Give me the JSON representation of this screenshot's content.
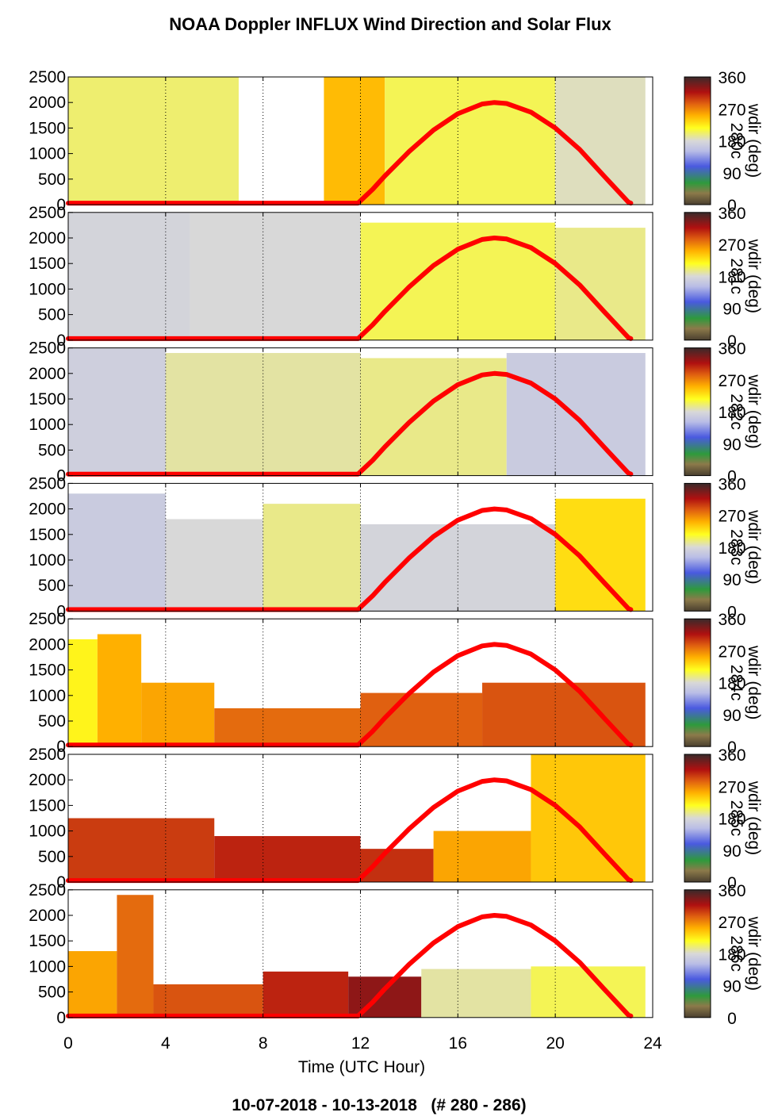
{
  "chart_data": {
    "type": "heatmap",
    "title": "NOAA Doppler INFLUX Wind Direction and Solar Flux",
    "xlabel": "Time (UTC Hour)",
    "ylabel": "",
    "xlim": [
      0,
      24
    ],
    "ylim": [
      0,
      2500
    ],
    "x_ticks": [
      "0",
      "4",
      "8",
      "12",
      "16",
      "20",
      "24"
    ],
    "y_ticks": [
      "0",
      "500",
      "1000",
      "1500",
      "2000",
      "2500"
    ],
    "grid": "dotted vertical at x = 4, 8, 12, 16, 20, 24",
    "date_range": "10-07-2018 - 10-13-2018   (# 280 - 286)",
    "colorbar": {
      "label": "wdir (deg)",
      "ticks": [
        "0",
        "90",
        "180",
        "270",
        "360"
      ],
      "range": [
        0,
        360
      ]
    },
    "solar_flux_curve": {
      "color": "#ff0000",
      "x": [
        0,
        11.9,
        12.5,
        13,
        14,
        15,
        16,
        17,
        17.5,
        18,
        19,
        20,
        21,
        22,
        23,
        23.1
      ],
      "y": [
        30,
        30,
        300,
        560,
        1040,
        1460,
        1780,
        1970,
        2000,
        1980,
        1810,
        1500,
        1080,
        560,
        50,
        30
      ]
    },
    "panels": [
      {
        "day_label": "280c",
        "segments": [
          {
            "t0": 0,
            "t1": 7.0,
            "deg": 200,
            "top": 2500
          },
          {
            "t0": 7.0,
            "t1": 10.5,
            "deg": null,
            "top": 2500
          },
          {
            "t0": 10.5,
            "t1": 13,
            "deg": 245,
            "top": 2500
          },
          {
            "t0": 13,
            "t1": 20,
            "deg": 205,
            "top": 2500
          },
          {
            "t0": 20,
            "t1": 23.7,
            "deg": 185,
            "top": 2500
          }
        ]
      },
      {
        "day_label": "281c",
        "segments": [
          {
            "t0": 0,
            "t1": 5,
            "deg": 175,
            "top": 2500
          },
          {
            "t0": 5,
            "t1": 12,
            "deg": 180,
            "top": 2500
          },
          {
            "t0": 12,
            "t1": 20,
            "deg": 205,
            "top": 2300
          },
          {
            "t0": 20,
            "t1": 23.7,
            "deg": 195,
            "top": 2200
          }
        ]
      },
      {
        "day_label": "282c",
        "segments": [
          {
            "t0": 0,
            "t1": 4,
            "deg": 170,
            "top": 2500
          },
          {
            "t0": 4,
            "t1": 12,
            "deg": 190,
            "top": 2400
          },
          {
            "t0": 12,
            "t1": 18,
            "deg": 195,
            "top": 2300
          },
          {
            "t0": 18,
            "t1": 23.7,
            "deg": 165,
            "top": 2400
          }
        ]
      },
      {
        "day_label": "283c",
        "segments": [
          {
            "t0": 0,
            "t1": 4,
            "deg": 165,
            "top": 2300
          },
          {
            "t0": 4,
            "t1": 8,
            "deg": 180,
            "top": 1800
          },
          {
            "t0": 8,
            "t1": 12,
            "deg": 195,
            "top": 2100
          },
          {
            "t0": 12,
            "t1": 20,
            "deg": 175,
            "top": 1700
          },
          {
            "t0": 20,
            "t1": 23.7,
            "deg": 230,
            "top": 2200
          }
        ]
      },
      {
        "day_label": "284c",
        "segments": [
          {
            "t0": 0,
            "t1": 1.2,
            "deg": 220,
            "top": 2100
          },
          {
            "t0": 1.2,
            "t1": 3.0,
            "deg": 250,
            "top": 2200
          },
          {
            "t0": 3.0,
            "t1": 6.0,
            "deg": 255,
            "top": 1250
          },
          {
            "t0": 6.0,
            "t1": 12.0,
            "deg": 280,
            "top": 750
          },
          {
            "t0": 12.0,
            "t1": 17.0,
            "deg": 285,
            "top": 1050
          },
          {
            "t0": 17.0,
            "t1": 23.7,
            "deg": 290,
            "top": 1250
          }
        ]
      },
      {
        "day_label": "285c",
        "segments": [
          {
            "t0": 0,
            "t1": 6,
            "deg": 300,
            "top": 1250
          },
          {
            "t0": 6,
            "t1": 12,
            "deg": 310,
            "top": 900
          },
          {
            "t0": 12,
            "t1": 15,
            "deg": 305,
            "top": 650
          },
          {
            "t0": 15,
            "t1": 19,
            "deg": 255,
            "top": 1000
          },
          {
            "t0": 19,
            "t1": 23.7,
            "deg": 240,
            "top": 2500
          }
        ]
      },
      {
        "day_label": "286c",
        "segments": [
          {
            "t0": 0,
            "t1": 2,
            "deg": 255,
            "top": 1300
          },
          {
            "t0": 2,
            "t1": 3.5,
            "deg": 280,
            "top": 2400
          },
          {
            "t0": 3.5,
            "t1": 8,
            "deg": 290,
            "top": 650
          },
          {
            "t0": 8,
            "t1": 11.5,
            "deg": 310,
            "top": 900
          },
          {
            "t0": 11.5,
            "t1": 14.5,
            "deg": 330,
            "top": 800
          },
          {
            "t0": 14.5,
            "t1": 19,
            "deg": 190,
            "top": 950
          },
          {
            "t0": 19,
            "t1": 23.7,
            "deg": 205,
            "top": 1000
          }
        ]
      }
    ]
  }
}
